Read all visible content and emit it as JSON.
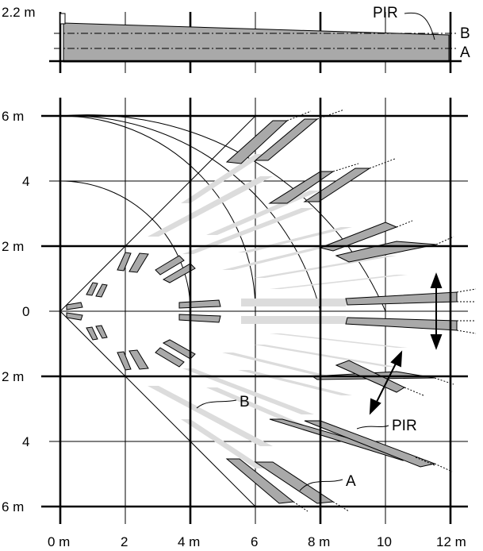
{
  "side_view": {
    "height_label": "2.2 m",
    "pir_label": "PIR",
    "beam_b_label": "B",
    "beam_a_label": "A"
  },
  "top_view": {
    "y_axis_labels": [
      "6 m",
      "4",
      "2 m",
      "0",
      "2 m",
      "4",
      "6 m"
    ],
    "x_axis_labels": [
      "0 m",
      "2",
      "4 m",
      "6",
      "8 m",
      "10",
      "12 m"
    ],
    "callout_b": "B",
    "callout_pir": "PIR",
    "callout_a": "A"
  },
  "colors": {
    "zone_dark": "#a9a9a9",
    "zone_light": "#dcdcdc",
    "line": "#000000"
  }
}
